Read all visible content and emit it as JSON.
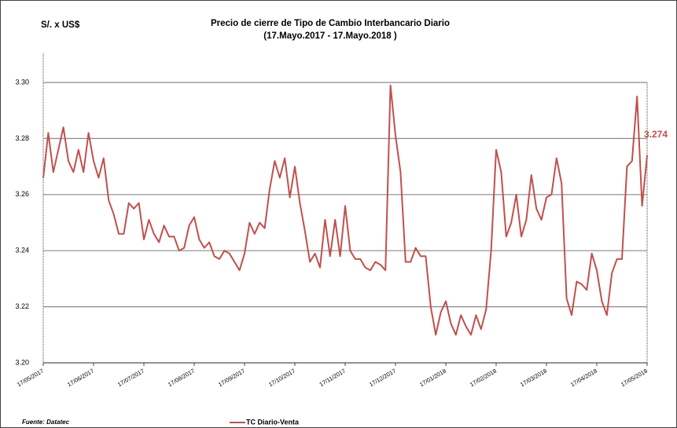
{
  "chart_data": {
    "type": "line",
    "title": "Precio de cierre de Tipo de Cambio Interbancario  Diario",
    "subtitle": "(17.Mayo.2017  -  17.Mayo.2018 )",
    "y_label": "S/. x US$",
    "source": "Fuente: Datatec",
    "categories": [
      "17/05/2017",
      null,
      null,
      null,
      null,
      null,
      null,
      null,
      null,
      null,
      "17/06/2017",
      null,
      null,
      null,
      null,
      null,
      null,
      null,
      null,
      null,
      "17/07/2017",
      null,
      null,
      null,
      null,
      null,
      null,
      null,
      null,
      null,
      "17/08/2017",
      null,
      null,
      null,
      null,
      null,
      null,
      null,
      null,
      null,
      "17/09/2017",
      null,
      null,
      null,
      null,
      null,
      null,
      null,
      null,
      null,
      "17/10/2017",
      null,
      null,
      null,
      null,
      null,
      null,
      null,
      null,
      null,
      "17/11/2017",
      null,
      null,
      null,
      null,
      null,
      null,
      null,
      null,
      null,
      "17/12/2017",
      null,
      null,
      null,
      null,
      null,
      null,
      null,
      null,
      null,
      "17/01/2018",
      null,
      null,
      null,
      null,
      null,
      null,
      null,
      null,
      null,
      "17/02/2018",
      null,
      null,
      null,
      null,
      null,
      null,
      null,
      null,
      null,
      "17/03/2018",
      null,
      null,
      null,
      null,
      null,
      null,
      null,
      null,
      null,
      "17/04/2018",
      null,
      null,
      null,
      null,
      null,
      null,
      null,
      null,
      null,
      "17/05/2018"
    ],
    "series": [
      {
        "name": "TC Diario-Venta",
        "color": "#c0504d",
        "values": [
          3.266,
          3.282,
          3.268,
          3.276,
          3.284,
          3.272,
          3.268,
          3.276,
          3.268,
          3.282,
          3.272,
          3.266,
          3.273,
          3.258,
          3.253,
          3.246,
          3.246,
          3.257,
          3.255,
          3.257,
          3.244,
          3.251,
          3.246,
          3.243,
          3.249,
          3.245,
          3.245,
          3.24,
          3.241,
          3.249,
          3.252,
          3.244,
          3.241,
          3.243,
          3.238,
          3.237,
          3.24,
          3.239,
          3.236,
          3.233,
          3.239,
          3.25,
          3.246,
          3.25,
          3.248,
          3.262,
          3.272,
          3.266,
          3.273,
          3.259,
          3.27,
          3.257,
          3.247,
          3.236,
          3.239,
          3.234,
          3.251,
          3.238,
          3.251,
          3.238,
          3.256,
          3.24,
          3.237,
          3.237,
          3.234,
          3.233,
          3.236,
          3.235,
          3.233,
          3.299,
          3.281,
          3.268,
          3.236,
          3.236,
          3.241,
          3.238,
          3.238,
          3.22,
          3.21,
          3.218,
          3.222,
          3.214,
          3.21,
          3.217,
          3.213,
          3.21,
          3.217,
          3.212,
          3.219,
          3.24,
          3.276,
          3.268,
          3.245,
          3.25,
          3.26,
          3.245,
          3.251,
          3.267,
          3.255,
          3.251,
          3.259,
          3.26,
          3.273,
          3.264,
          3.223,
          3.217,
          3.229,
          3.228,
          3.226,
          3.239,
          3.233,
          3.222,
          3.217,
          3.232,
          3.237,
          3.237,
          3.27,
          3.272,
          3.295,
          3.256,
          3.274
        ]
      }
    ],
    "ylim": [
      3.2,
      3.3
    ],
    "yticks": [
      {
        "value": 3.2,
        "label": "3.20"
      },
      {
        "value": 3.22,
        "label": "3.22"
      },
      {
        "value": 3.24,
        "label": "3.24"
      },
      {
        "value": 3.26,
        "label": "3.26"
      },
      {
        "value": 3.28,
        "label": "3.28"
      },
      {
        "value": 3.3,
        "label": "3.30"
      }
    ],
    "grid": true
  }
}
